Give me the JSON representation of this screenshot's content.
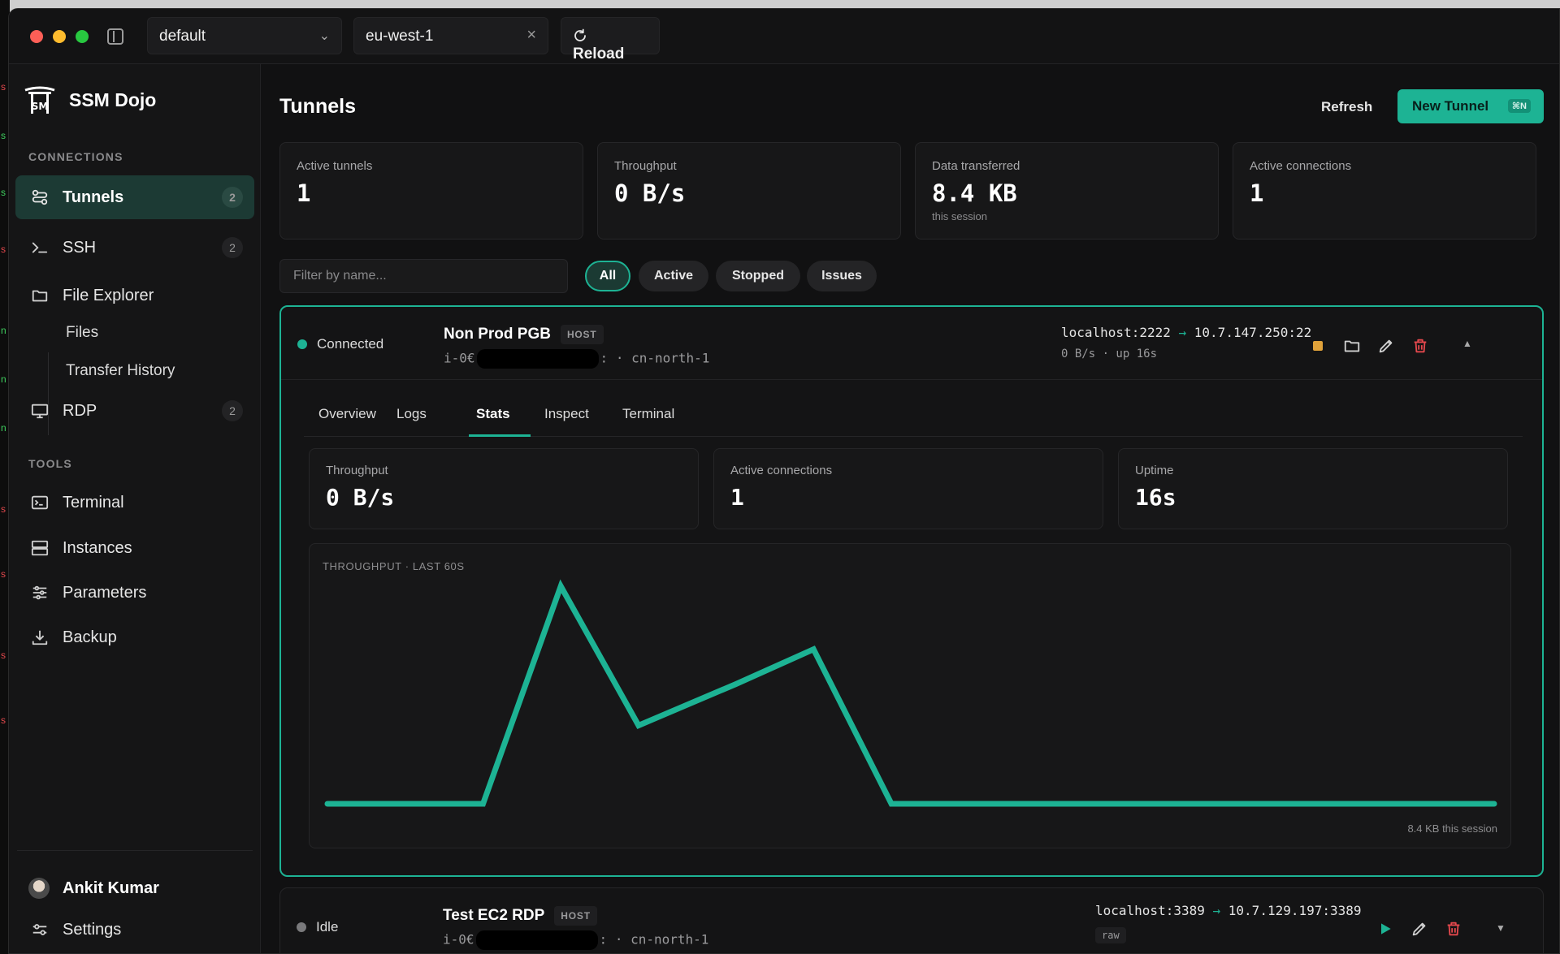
{
  "titlebar": {
    "profile": "default",
    "region": "eu-west-1",
    "reload_label": "Reload"
  },
  "sidebar": {
    "app_name": "SSM Dojo",
    "connections_label": "CONNECTIONS",
    "tools_label": "TOOLS",
    "items": [
      {
        "label": "Tunnels",
        "count": "2",
        "icon": "tunnel-icon"
      },
      {
        "label": "SSH",
        "count": "2",
        "icon": "terminal-prompt-icon"
      },
      {
        "label": "File Explorer",
        "icon": "folder-icon"
      },
      {
        "label": "Files"
      },
      {
        "label": "Transfer History"
      },
      {
        "label": "RDP",
        "count": "2",
        "icon": "monitor-icon"
      }
    ],
    "tools": [
      {
        "label": "Terminal",
        "icon": "terminal-icon"
      },
      {
        "label": "Instances",
        "icon": "server-icon"
      },
      {
        "label": "Parameters",
        "icon": "sliders-icon"
      },
      {
        "label": "Backup",
        "icon": "download-icon"
      }
    ],
    "user_name": "Ankit Kumar",
    "settings_label": "Settings"
  },
  "main": {
    "title": "Tunnels",
    "refresh_label": "Refresh",
    "new_tunnel_label": "New Tunnel",
    "new_tunnel_shortcut": "⌘N",
    "stats": [
      {
        "label": "Active tunnels",
        "value": "1",
        "sub": ""
      },
      {
        "label": "Throughput",
        "value": "0 B/s",
        "sub": ""
      },
      {
        "label": "Data transferred",
        "value": "8.4 KB",
        "sub": "this session"
      },
      {
        "label": "Active connections",
        "value": "1",
        "sub": ""
      }
    ],
    "filter_placeholder": "Filter by name...",
    "chips": [
      "All",
      "Active",
      "Stopped",
      "Issues"
    ]
  },
  "tunnel1": {
    "status": "Connected",
    "name": "Non Prod PGB",
    "badge": "HOST",
    "instance_prefix": "i-0€",
    "instance_suffix": ":",
    "region": "· cn-north-1",
    "local": "localhost:2222",
    "arrow": "→",
    "remote": "10.7.147.250:22",
    "sub": "0 B/s · up 16s",
    "tabs": [
      "Overview",
      "Logs",
      "Stats",
      "Inspect",
      "Terminal"
    ],
    "inner_stats": [
      {
        "label": "Throughput",
        "value": "0 B/s"
      },
      {
        "label": "Active connections",
        "value": "1"
      },
      {
        "label": "Uptime",
        "value": "16s"
      }
    ],
    "chart_footer": "8.4 KB this session"
  },
  "tunnel2": {
    "status": "Idle",
    "name": "Test EC2 RDP",
    "badge": "HOST",
    "instance_prefix": "i-0€",
    "instance_suffix": ":",
    "region": "· cn-north-1",
    "local": "localhost:3389",
    "arrow": "→",
    "remote": "10.7.129.197:3389",
    "tag": "raw"
  },
  "colors": {
    "accent": "#1db394",
    "stop": "#e0a23a",
    "delete": "#e5484d",
    "idle": "#7a7a7c"
  },
  "chart_data": {
    "type": "line",
    "title": "THROUGHPUT · LAST 60S",
    "series": [
      {
        "values": [
          0,
          0,
          0,
          1.0,
          0.36,
          0.55,
          0.71,
          0,
          0,
          0,
          0,
          0,
          0,
          0,
          0,
          0,
          0
        ]
      }
    ],
    "x": [
      0,
      5,
      8,
      12,
      16,
      21,
      25,
      29,
      33,
      37,
      41,
      45,
      49,
      53,
      57,
      59,
      60
    ],
    "ylim": [
      0,
      1.0
    ],
    "grid": false,
    "legend": "none"
  }
}
